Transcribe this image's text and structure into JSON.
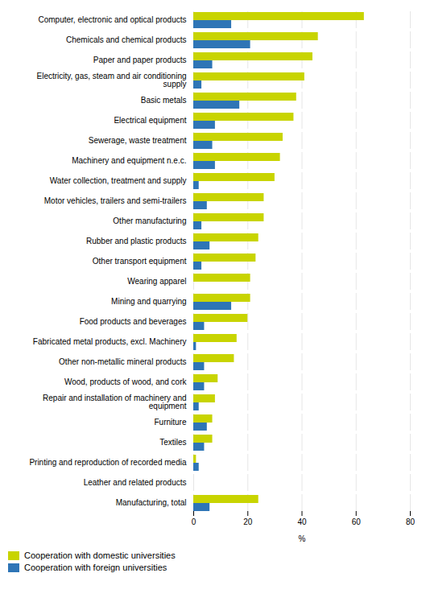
{
  "chart_data": {
    "type": "bar",
    "orientation": "horizontal",
    "categories": [
      "Computer, electronic and optical products",
      "Chemicals and chemical products",
      "Paper and paper products",
      "Electricity, gas, steam and air conditioning\nsupply",
      "Basic metals",
      "Electrical equipment",
      "Sewerage, waste treatment",
      "Machinery and equipment n.e.c.",
      "Water collection, treatment and supply",
      "Motor vehicles, trailers and semi-trailers",
      "Other manufacturing",
      "Rubber and plastic products",
      "Other transport equipment",
      "Wearing apparel",
      "Mining and quarrying",
      "Food products and beverages",
      "Fabricated metal products, excl. Machinery",
      "Other non-metallic mineral products",
      "Wood, products of wood, and cork",
      "Repair and installation of machinery and\nequipment",
      "Furniture",
      "Textiles",
      "Printing and reproduction of recorded media",
      "Leather and related products",
      "Manufacturing, total"
    ],
    "series": [
      {
        "name": "Cooperation with domestic universities",
        "color": "#c8d400",
        "values": [
          63,
          46,
          44,
          41,
          38,
          37,
          33,
          32,
          30,
          26,
          26,
          24,
          23,
          21,
          21,
          20,
          16,
          15,
          9,
          8,
          7,
          7,
          1,
          0,
          24
        ]
      },
      {
        "name": "Cooperation with foreign universities",
        "color": "#2e75b6",
        "values": [
          14,
          21,
          7,
          3,
          17,
          8,
          7,
          8,
          2,
          5,
          3,
          6,
          3,
          0,
          14,
          4,
          1,
          4,
          4,
          2,
          5,
          4,
          2,
          0,
          6
        ]
      }
    ],
    "xlabel": "%",
    "xlim": [
      0,
      80
    ],
    "xticks": [
      0,
      20,
      40,
      60,
      80
    ],
    "grid": true,
    "legend": "lower left"
  }
}
